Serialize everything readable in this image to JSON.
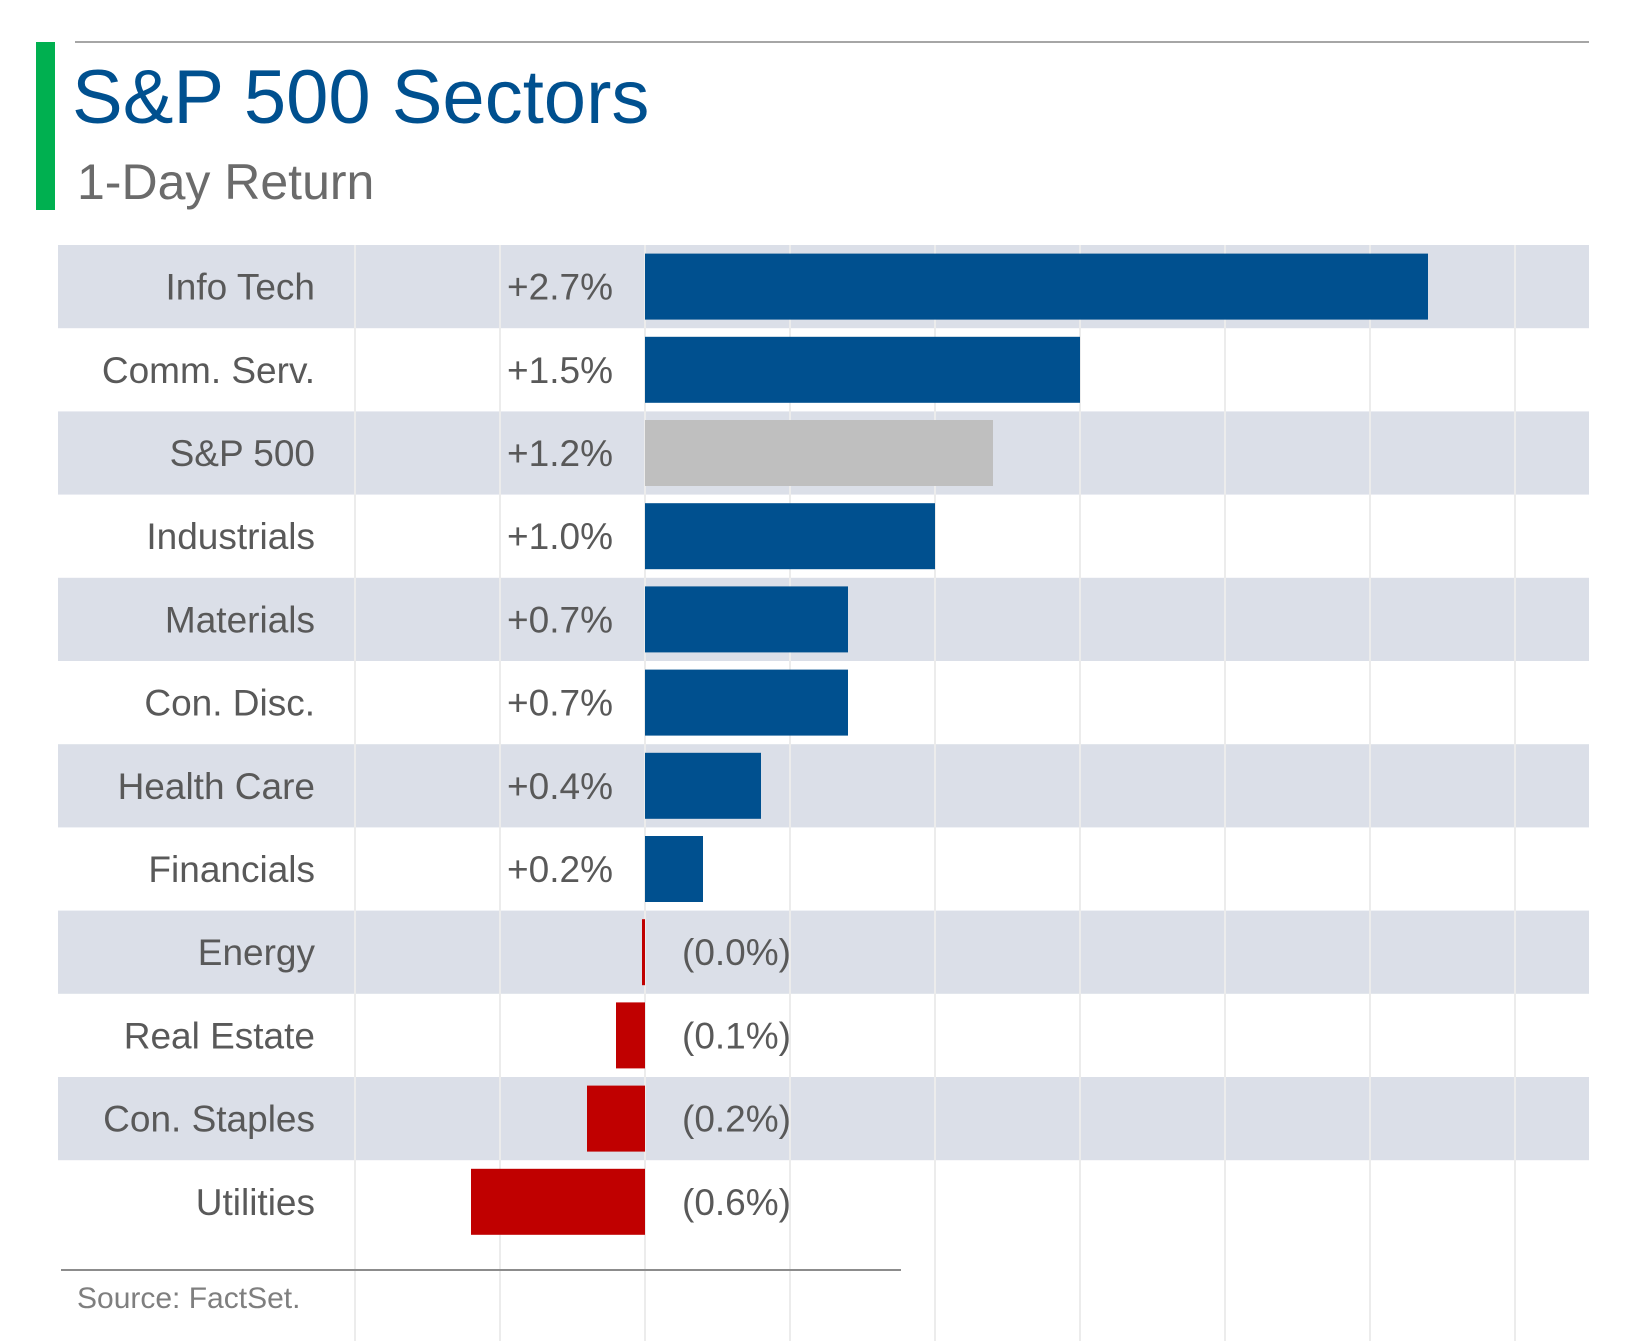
{
  "header": {
    "title": "S&P 500 Sectors",
    "subtitle": "1-Day Return",
    "accent_color": "#00b050"
  },
  "footer": {
    "source": "Source: FactSet."
  },
  "colors": {
    "positive": "#00508f",
    "negative": "#c00000",
    "benchmark": "#bfbfbf",
    "band": "#dbdfe8"
  },
  "chart_data": {
    "type": "bar",
    "orientation": "horizontal",
    "categories": [
      "Info Tech",
      "Comm. Serv.",
      "S&P 500",
      "Industrials",
      "Materials",
      "Con. Disc.",
      "Health Care",
      "Financials",
      "Energy",
      "Real Estate",
      "Con. Staples",
      "Utilities"
    ],
    "values": [
      2.7,
      1.5,
      1.2,
      1.0,
      0.7,
      0.7,
      0.4,
      0.2,
      -0.01,
      -0.1,
      -0.2,
      -0.6
    ],
    "value_labels": [
      "+2.7%",
      "+1.5%",
      "+1.2%",
      "+1.0%",
      "+0.7%",
      "+0.7%",
      "+0.4%",
      "+0.2%",
      "(0.0%)",
      "(0.1%)",
      "(0.2%)",
      "(0.6%)"
    ],
    "benchmark_category": "S&P 500",
    "xlim": [
      -1.0,
      3.0
    ],
    "grid": true,
    "legend": "none",
    "alternating_row_bands": true
  }
}
